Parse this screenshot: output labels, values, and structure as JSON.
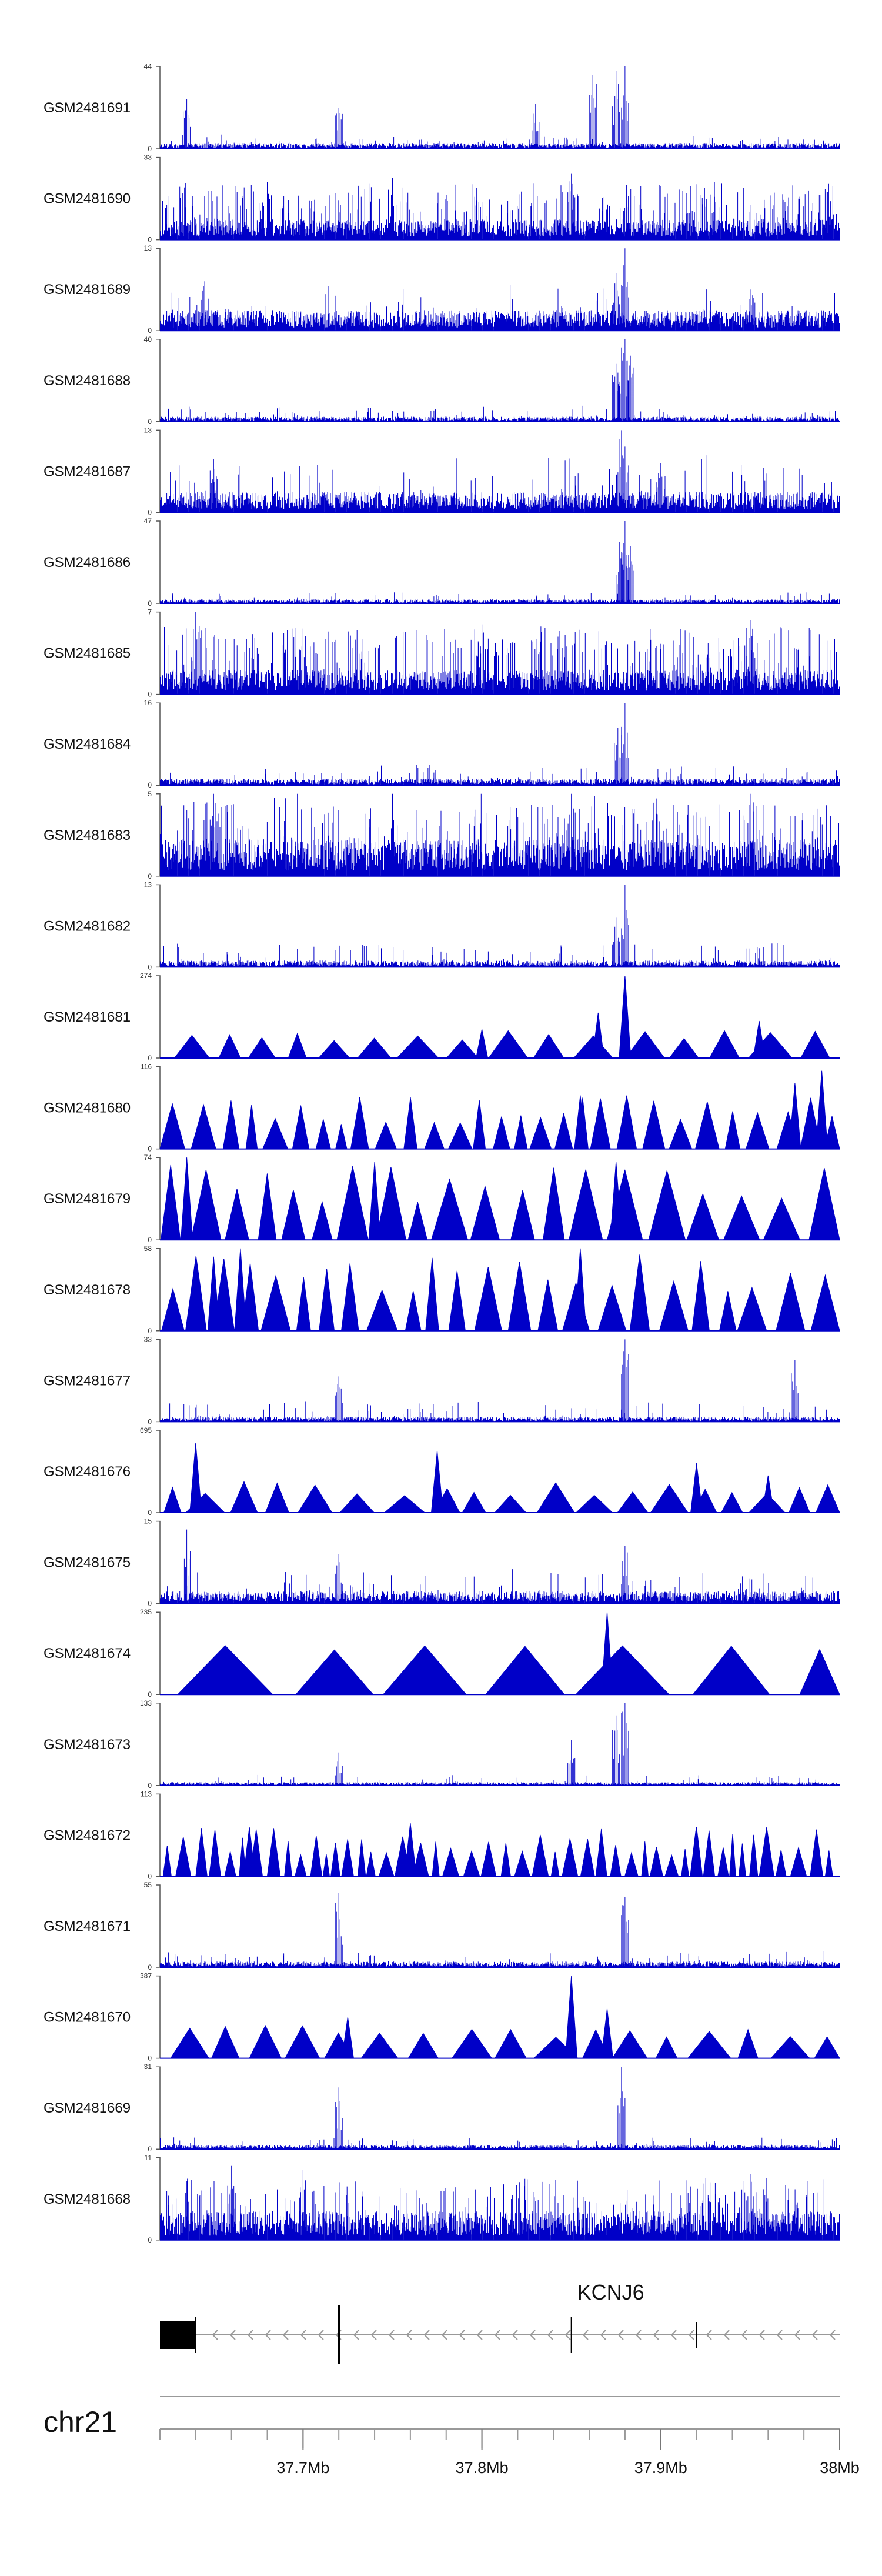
{
  "chart_data": {
    "type": "area",
    "title": "",
    "chromosome": "chr21",
    "track_color": "#0000c8",
    "x_range": [
      37.62,
      38.0
    ],
    "x_unit": "Mb",
    "tracks": [
      {
        "name": "GSM2481691",
        "ymin": 0,
        "ymax": 44,
        "style": "spiky",
        "base": 0.07,
        "noise": 0.11,
        "peaks": [
          [
            37.635,
            0.6
          ],
          [
            37.72,
            0.5
          ],
          [
            37.83,
            0.55
          ],
          [
            37.862,
            0.9
          ],
          [
            37.875,
            0.95
          ],
          [
            37.88,
            1.0
          ]
        ]
      },
      {
        "name": "GSM2481690",
        "ymin": 0,
        "ymax": 33,
        "style": "dense",
        "base": 0.25,
        "noise": 0.35,
        "peaks": [
          [
            37.68,
            0.7
          ],
          [
            37.75,
            0.75
          ],
          [
            37.85,
            0.8
          ],
          [
            37.93,
            0.7
          ]
        ]
      },
      {
        "name": "GSM2481689",
        "ymin": 0,
        "ymax": 13,
        "style": "spiky",
        "base": 0.25,
        "noise": 0.35,
        "peaks": [
          [
            37.645,
            0.6
          ],
          [
            37.88,
            1.0
          ],
          [
            37.875,
            0.7
          ],
          [
            37.95,
            0.5
          ]
        ]
      },
      {
        "name": "GSM2481688",
        "ymin": 0,
        "ymax": 40,
        "style": "spiky",
        "base": 0.06,
        "noise": 0.15,
        "peaks": [
          [
            37.875,
            0.7
          ],
          [
            37.878,
            0.9
          ],
          [
            37.88,
            1.0
          ],
          [
            37.883,
            0.8
          ]
        ]
      },
      {
        "name": "GSM2481687",
        "ymin": 0,
        "ymax": 13,
        "style": "spiky",
        "base": 0.25,
        "noise": 0.45,
        "peaks": [
          [
            37.65,
            0.65
          ],
          [
            37.878,
            1.0
          ],
          [
            37.88,
            0.8
          ],
          [
            37.9,
            0.6
          ]
        ]
      },
      {
        "name": "GSM2481686",
        "ymin": 0,
        "ymax": 47,
        "style": "spiky",
        "base": 0.05,
        "noise": 0.1,
        "peaks": [
          [
            37.877,
            0.75
          ],
          [
            37.88,
            1.0
          ],
          [
            37.883,
            0.7
          ]
        ]
      },
      {
        "name": "GSM2481685",
        "ymin": 0,
        "ymax": 7,
        "style": "dense",
        "base": 0.3,
        "noise": 0.55,
        "peaks": [
          [
            37.64,
            1.0
          ],
          [
            37.7,
            0.8
          ],
          [
            37.8,
            0.85
          ],
          [
            37.95,
            0.9
          ]
        ]
      },
      {
        "name": "GSM2481684",
        "ymin": 0,
        "ymax": 16,
        "style": "spiky",
        "base": 0.08,
        "noise": 0.18,
        "peaks": [
          [
            37.876,
            0.7
          ],
          [
            37.88,
            1.0
          ]
        ]
      },
      {
        "name": "GSM2481683",
        "ymin": 0,
        "ymax": 5,
        "style": "dense",
        "base": 0.45,
        "noise": 0.65,
        "peaks": [
          [
            37.65,
            1.0
          ],
          [
            37.75,
            1.0
          ],
          [
            37.85,
            1.0
          ],
          [
            37.95,
            1.0
          ]
        ]
      },
      {
        "name": "GSM2481682",
        "ymin": 0,
        "ymax": 13,
        "style": "spiky",
        "base": 0.08,
        "noise": 0.25,
        "peaks": [
          [
            37.88,
            1.0
          ],
          [
            37.875,
            0.6
          ]
        ]
      },
      {
        "name": "GSM2481681",
        "ymin": 0,
        "ymax": 274,
        "style": "sparse",
        "count": 22,
        "heights": [
          0.2,
          0.35
        ],
        "peaks": [
          [
            37.88,
            1.0
          ],
          [
            37.865,
            0.55
          ],
          [
            37.955,
            0.45
          ],
          [
            37.8,
            0.35
          ]
        ]
      },
      {
        "name": "GSM2481680",
        "ymin": 0,
        "ymax": 116,
        "style": "sparse",
        "count": 38,
        "heights": [
          0.3,
          0.65
        ],
        "peaks": [
          [
            37.855,
            0.65
          ],
          [
            37.99,
            0.95
          ],
          [
            37.975,
            0.8
          ]
        ]
      },
      {
        "name": "GSM2481679",
        "ymin": 0,
        "ymax": 74,
        "style": "sparse",
        "count": 26,
        "heights": [
          0.45,
          0.95
        ],
        "peaks": [
          [
            37.74,
            0.95
          ],
          [
            37.875,
            0.95
          ],
          [
            37.635,
            1.0
          ]
        ]
      },
      {
        "name": "GSM2481678",
        "ymin": 0,
        "ymax": 58,
        "style": "sparse",
        "count": 30,
        "heights": [
          0.45,
          0.95
        ],
        "peaks": [
          [
            37.665,
            1.0
          ],
          [
            37.855,
            1.0
          ],
          [
            37.65,
            0.9
          ]
        ]
      },
      {
        "name": "GSM2481677",
        "ymin": 0,
        "ymax": 33,
        "style": "spiky",
        "base": 0.06,
        "noise": 0.2,
        "peaks": [
          [
            37.88,
            1.0
          ],
          [
            37.72,
            0.55
          ],
          [
            37.975,
            0.75
          ]
        ]
      },
      {
        "name": "GSM2481676",
        "ymin": 0,
        "ymax": 695,
        "style": "sparse",
        "count": 24,
        "heights": [
          0.2,
          0.4
        ],
        "peaks": [
          [
            37.64,
            0.85
          ],
          [
            37.775,
            0.75
          ],
          [
            37.92,
            0.6
          ],
          [
            37.96,
            0.45
          ]
        ]
      },
      {
        "name": "GSM2481675",
        "ymin": 0,
        "ymax": 15,
        "style": "spiky",
        "base": 0.15,
        "noise": 0.3,
        "peaks": [
          [
            37.635,
            0.9
          ],
          [
            37.72,
            0.6
          ],
          [
            37.88,
            0.7
          ]
        ]
      },
      {
        "name": "GSM2481674",
        "ymin": 0,
        "ymax": 235,
        "style": "sparse",
        "count": 8,
        "heights": [
          0.5,
          0.6
        ],
        "peaks": [
          [
            37.87,
            1.0
          ],
          [
            37.77,
            0.5
          ]
        ]
      },
      {
        "name": "GSM2481673",
        "ymin": 0,
        "ymax": 133,
        "style": "spiky",
        "base": 0.04,
        "noise": 0.1,
        "peaks": [
          [
            37.88,
            1.0
          ],
          [
            37.875,
            0.85
          ],
          [
            37.85,
            0.55
          ],
          [
            37.72,
            0.4
          ]
        ]
      },
      {
        "name": "GSM2481672",
        "ymin": 0,
        "ymax": 113,
        "style": "sparse",
        "count": 60,
        "heights": [
          0.25,
          0.6
        ],
        "peaks": [
          [
            37.67,
            0.6
          ],
          [
            37.76,
            0.65
          ],
          [
            37.92,
            0.6
          ]
        ]
      },
      {
        "name": "GSM2481671",
        "ymin": 0,
        "ymax": 55,
        "style": "spiky",
        "base": 0.07,
        "noise": 0.15,
        "peaks": [
          [
            37.72,
            0.9
          ],
          [
            37.88,
            0.85
          ]
        ]
      },
      {
        "name": "GSM2481670",
        "ymin": 0,
        "ymax": 387,
        "style": "sparse",
        "count": 22,
        "heights": [
          0.25,
          0.4
        ],
        "peaks": [
          [
            37.85,
            1.0
          ],
          [
            37.87,
            0.6
          ],
          [
            37.725,
            0.5
          ]
        ]
      },
      {
        "name": "GSM2481669",
        "ymin": 0,
        "ymax": 31,
        "style": "spiky",
        "base": 0.05,
        "noise": 0.1,
        "peaks": [
          [
            37.878,
            1.0
          ],
          [
            37.72,
            0.75
          ]
        ]
      },
      {
        "name": "GSM2481668",
        "ymin": 0,
        "ymax": 11,
        "style": "dense",
        "base": 0.35,
        "noise": 0.45,
        "peaks": [
          [
            37.66,
            0.9
          ],
          [
            37.7,
            0.85
          ],
          [
            37.95,
            0.8
          ]
        ]
      }
    ],
    "gene": {
      "name": "KCNJ6",
      "strand": "-",
      "start": 37.62,
      "end": 38.0,
      "exon_block": [
        37.62,
        37.64
      ],
      "exon_marks": [
        37.64,
        37.72,
        37.85,
        37.92
      ]
    },
    "axis": {
      "ticks": [
        {
          "pos": 37.7,
          "label": "37.7Mb"
        },
        {
          "pos": 37.8,
          "label": "37.8Mb"
        },
        {
          "pos": 37.9,
          "label": "37.9Mb"
        },
        {
          "pos": 38.0,
          "label": "38Mb"
        }
      ]
    }
  }
}
